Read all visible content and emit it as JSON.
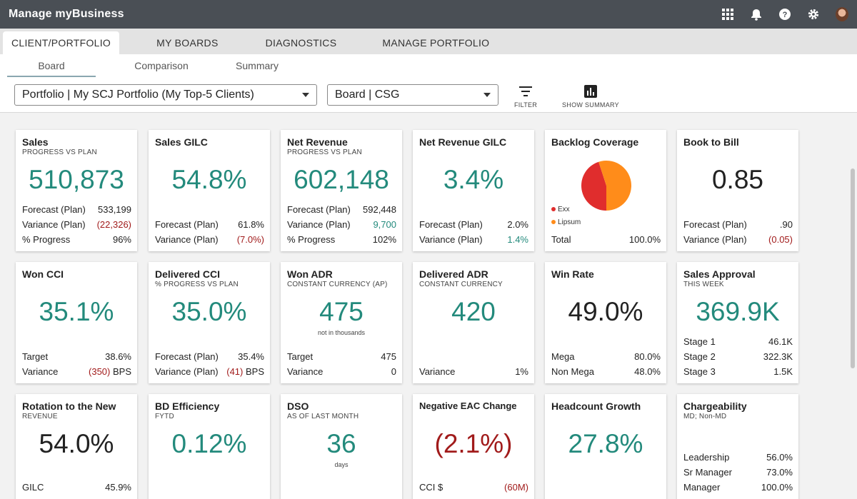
{
  "app": {
    "title": "Manage myBusiness"
  },
  "tabs": [
    {
      "label": "CLIENT/PORTFOLIO",
      "active": true
    },
    {
      "label": "MY BOARDS"
    },
    {
      "label": "DIAGNOSTICS"
    },
    {
      "label": "MANAGE PORTFOLIO"
    }
  ],
  "subtabs": [
    {
      "label": "Board",
      "active": true
    },
    {
      "label": "Comparison"
    },
    {
      "label": "Summary"
    }
  ],
  "filters": {
    "portfolio": "Portfolio | My SCJ Portfolio (My Top-5 Clients)",
    "board": "Board | CSG",
    "filter_label": "FILTER",
    "summary_label": "SHOW SUMMARY"
  },
  "icons": [
    "apps-grid-icon",
    "bell-icon",
    "help-icon",
    "gear-icon",
    "user-avatar"
  ],
  "colors": {
    "teal": "#238a7c",
    "red": "#a11b1b",
    "pie_red": "#e02d2d",
    "pie_orange": "#ff8c1a"
  },
  "cards": [
    {
      "title": "Sales",
      "sub": "PROGRESS VS PLAN",
      "value": "510,873",
      "color": "teal",
      "rows": [
        {
          "l": "Forecast (Plan)",
          "v": "533,199"
        },
        {
          "l": "Variance (Plan)",
          "v": "(22,326)",
          "c": "red"
        },
        {
          "l": "% Progress",
          "v": "96%"
        }
      ]
    },
    {
      "title": "Sales GILC",
      "sub": "",
      "value": "54.8%",
      "color": "teal",
      "rows": [
        {
          "l": "Forecast (Plan)",
          "v": "61.8%"
        },
        {
          "l": "Variance (Plan)",
          "v": "(7.0%)",
          "c": "red"
        }
      ]
    },
    {
      "title": "Net Revenue",
      "sub": "PROGRESS VS PLAN",
      "value": "602,148",
      "color": "teal",
      "rows": [
        {
          "l": "Forecast (Plan)",
          "v": "592,448"
        },
        {
          "l": "Variance (Plan)",
          "v": "9,700",
          "c": "teal"
        },
        {
          "l": "% Progress",
          "v": "102%"
        }
      ]
    },
    {
      "title": "Net Revenue GILC",
      "sub": "",
      "value": "3.4%",
      "color": "teal",
      "rows": [
        {
          "l": "Forecast (Plan)",
          "v": "2.0%"
        },
        {
          "l": "Variance (Plan)",
          "v": "1.4%",
          "c": "teal"
        }
      ]
    },
    {
      "title": "Backlog Coverage",
      "sub": "",
      "value": "",
      "pie": true,
      "legend": [
        {
          "label": "Exx",
          "color": "#e02d2d",
          "share": 0.45
        },
        {
          "label": "Lipsum",
          "color": "#ff8c1a",
          "share": 0.55
        }
      ],
      "rows": [
        {
          "l": "Total",
          "v": "100.0%"
        }
      ]
    },
    {
      "title": "Book to Bill",
      "sub": "",
      "value": "0.85",
      "color": "dark",
      "rows": [
        {
          "l": "Forecast (Plan)",
          "v": ".90"
        },
        {
          "l": "Variance (Plan)",
          "v": "(0.05)",
          "c": "red"
        }
      ]
    },
    {
      "title": "Won CCI",
      "sub": "",
      "value": "35.1%",
      "color": "teal",
      "rows": [
        {
          "l": "Target",
          "v": "38.6%"
        },
        {
          "l": "Variance",
          "v": "(350) BPS",
          "c": "mixed"
        }
      ]
    },
    {
      "title": "Delivered CCI",
      "sub": "% PROGRESS VS PLAN",
      "value": "35.0%",
      "color": "teal",
      "rows": [
        {
          "l": "Forecast (Plan)",
          "v": "35.4%"
        },
        {
          "l": "Variance (Plan)",
          "v": "(41) BPS",
          "c": "mixed"
        }
      ]
    },
    {
      "title": "Won ADR",
      "sub": "CONSTANT CURRENCY (AP)",
      "value": "475",
      "color": "teal",
      "note": "not in thousands",
      "rows": [
        {
          "l": "Target",
          "v": "475"
        },
        {
          "l": "Variance",
          "v": "0"
        }
      ]
    },
    {
      "title": "Delivered ADR",
      "sub": "CONSTANT CURRENCY",
      "value": "420",
      "color": "teal",
      "rows": [
        {
          "l": "Variance",
          "v": "1%"
        }
      ]
    },
    {
      "title": "Win Rate",
      "sub": "",
      "value": "49.0%",
      "color": "dark",
      "rows": [
        {
          "l": "Mega",
          "v": "80.0%"
        },
        {
          "l": "Non Mega",
          "v": "48.0%"
        }
      ]
    },
    {
      "title": "Sales Approval",
      "sub": "THIS WEEK",
      "value": "369.9K",
      "color": "teal",
      "rows": [
        {
          "l": "Stage 1",
          "v": "46.1K"
        },
        {
          "l": "Stage 2",
          "v": "322.3K"
        },
        {
          "l": "Stage 3",
          "v": "1.5K"
        }
      ]
    },
    {
      "title": "Rotation to the New",
      "sub": "REVENUE",
      "value": "54.0%",
      "color": "dark",
      "rows": [
        {
          "l": "GILC",
          "v": "45.9%"
        }
      ]
    },
    {
      "title": "BD Efficiency",
      "sub": "FYTD",
      "value": "0.12%",
      "color": "teal",
      "rows": []
    },
    {
      "title": "DSO",
      "sub": "AS OF LAST MONTH",
      "value": "36",
      "color": "teal",
      "note": "days",
      "rows": []
    },
    {
      "title": "Negative EAC Change",
      "sub": "",
      "value": "(2.1%)",
      "color": "red",
      "small_title": true,
      "rows": [
        {
          "l": "CCI $",
          "v": "(60M)",
          "c": "red"
        }
      ]
    },
    {
      "title": "Headcount Growth",
      "sub": "",
      "value": "27.8%",
      "color": "teal",
      "rows": []
    },
    {
      "title": "Chargeability",
      "sub": "MD; Non-MD",
      "value": "",
      "color": "dark",
      "rows": [
        {
          "l": "Leadership",
          "v": "56.0%"
        },
        {
          "l": "Sr Manager",
          "v": "73.0%"
        },
        {
          "l": "Manager",
          "v": "100.0%"
        }
      ]
    }
  ]
}
